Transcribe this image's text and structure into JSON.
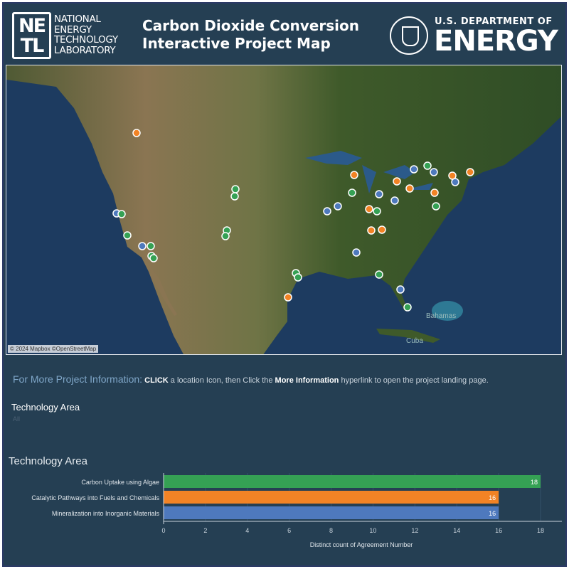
{
  "header": {
    "netl_logo": {
      "letters": "NE TL",
      "text": [
        "NATIONAL",
        "ENERGY",
        "TECHNOLOGY",
        "LABORATORY"
      ]
    },
    "title_line1": "Carbon Dioxide Conversion",
    "title_line2": "Interactive Project Map",
    "doe_logo": {
      "top": "U.S. DEPARTMENT OF",
      "big": "ENERGY"
    }
  },
  "map": {
    "attribution": "© 2024 Mapbox ©OpenStreetMap",
    "labels": [
      "Bahamas",
      "Cuba"
    ]
  },
  "info": {
    "lead": "For More Project Information:",
    "click": "CLICK",
    "mid": " a location Icon, then Click the ",
    "link": "More Information",
    "tail": " hyperlink to open the project landing page."
  },
  "filter": {
    "title": "Technology Area",
    "value": "All"
  },
  "colors": {
    "algae": "#35a154",
    "catalytic": "#f28325",
    "mineralization": "#4e79bd",
    "background": "#253f53"
  },
  "chart_data": {
    "type": "bar",
    "orientation": "horizontal",
    "title": "Technology Area",
    "categories": [
      "Carbon Uptake using Algae",
      "Catalytic Pathways into Fuels and Chemicals",
      "Mineralization into Inorganic Materials"
    ],
    "values": [
      18,
      16,
      16
    ],
    "colors": [
      "#35a154",
      "#f28325",
      "#4e79bd"
    ],
    "xlabel": "Distinct count of Agreement Number",
    "xlim": [
      0,
      19
    ],
    "xticks": [
      0,
      2,
      4,
      6,
      8,
      10,
      12,
      14,
      16,
      18
    ],
    "grid": true
  }
}
